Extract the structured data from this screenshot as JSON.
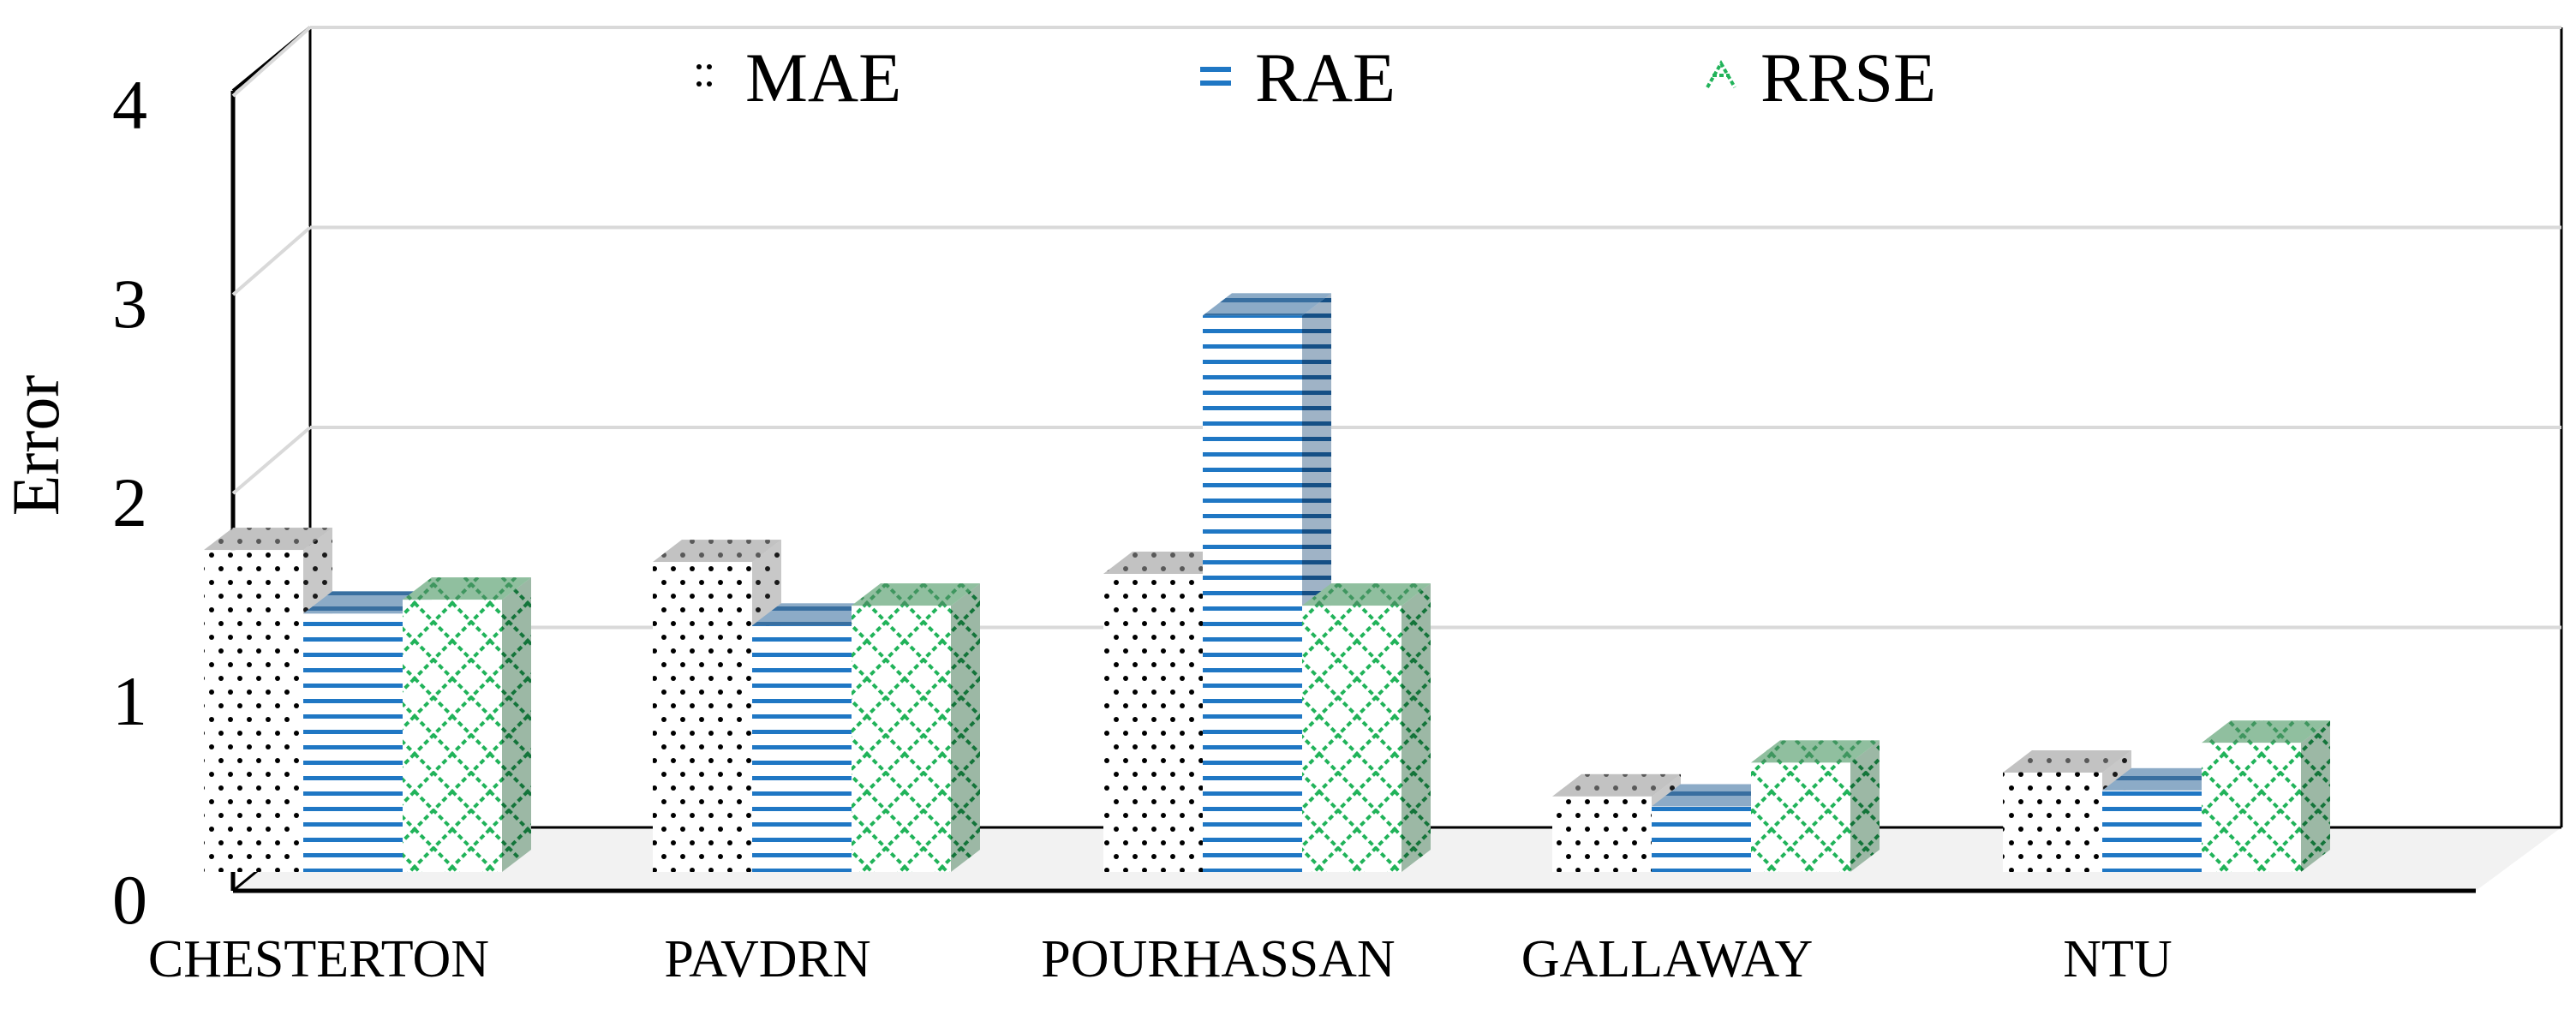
{
  "chart_data": {
    "type": "bar",
    "style": "3d-clustered-column",
    "title": "",
    "xlabel": "",
    "ylabel": "Error",
    "ylim": [
      0,
      4
    ],
    "yticks": [
      "0",
      "1",
      "2",
      "3",
      "4"
    ],
    "grid": true,
    "legend_position": "top-center",
    "categories": [
      "CHESTERTON",
      "PAVDRN",
      "POURHASSAN",
      "GALLAWAY",
      "NTU"
    ],
    "series": [
      {
        "name": "MAE",
        "pattern": "dots",
        "color": "#000000",
        "values": [
          1.62,
          1.56,
          1.5,
          0.38,
          0.5
        ]
      },
      {
        "name": "RAE",
        "pattern": "horizontal-lines",
        "color": "#1f77c4",
        "values": [
          1.3,
          1.24,
          2.8,
          0.33,
          0.41
        ]
      },
      {
        "name": "RRSE",
        "pattern": "crosshatch",
        "color": "#21b35a",
        "values": [
          1.37,
          1.34,
          1.34,
          0.55,
          0.65
        ]
      }
    ]
  }
}
